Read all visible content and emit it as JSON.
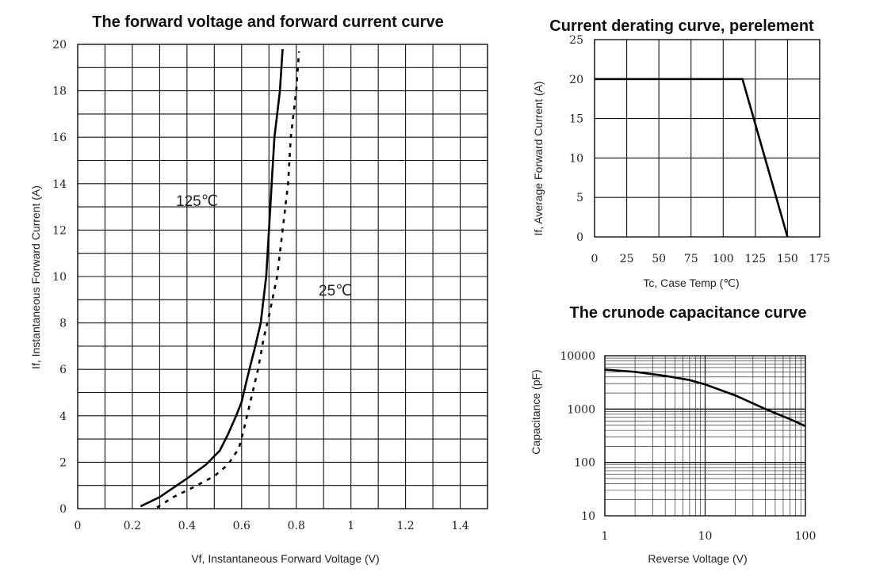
{
  "chart_data": [
    {
      "type": "line",
      "title": "The forward voltage and forward current curve",
      "xlabel": "Vf, Instantaneous Forward Voltage (V)",
      "ylabel": "If, Instantaneous Forward Current (A)",
      "xlim": [
        0,
        1.5
      ],
      "ylim": [
        0,
        20
      ],
      "x_ticks": [
        "0",
        "0.2",
        "0.4",
        "0.6",
        "0.8",
        "1",
        "1.2",
        "1.4"
      ],
      "y_ticks": [
        "0",
        "2",
        "4",
        "6",
        "8",
        "10",
        "12",
        "14",
        "16",
        "18",
        "20"
      ],
      "grid": true,
      "series": [
        {
          "name": "125℃",
          "line_style": "solid",
          "points": [
            [
              0.23,
              0.1
            ],
            [
              0.3,
              0.5
            ],
            [
              0.4,
              1.3
            ],
            [
              0.47,
              1.9
            ],
            [
              0.52,
              2.5
            ],
            [
              0.55,
              3.2
            ],
            [
              0.58,
              4.0
            ],
            [
              0.6,
              4.6
            ],
            [
              0.62,
              5.6
            ],
            [
              0.65,
              7.0
            ],
            [
              0.67,
              8.0
            ],
            [
              0.69,
              10.0
            ],
            [
              0.7,
              12.0
            ],
            [
              0.71,
              14.0
            ],
            [
              0.72,
              16.0
            ],
            [
              0.74,
              18.0
            ],
            [
              0.75,
              19.8
            ]
          ]
        },
        {
          "name": "25℃",
          "line_style": "dashed",
          "points": [
            [
              0.29,
              0.05
            ],
            [
              0.35,
              0.5
            ],
            [
              0.42,
              0.9
            ],
            [
              0.5,
              1.4
            ],
            [
              0.55,
              1.9
            ],
            [
              0.59,
              2.6
            ],
            [
              0.61,
              3.5
            ],
            [
              0.63,
              4.5
            ],
            [
              0.66,
              6.0
            ],
            [
              0.68,
              7.3
            ],
            [
              0.7,
              8.3
            ],
            [
              0.73,
              10.0
            ],
            [
              0.75,
              12.0
            ],
            [
              0.77,
              14.0
            ],
            [
              0.78,
              16.0
            ],
            [
              0.8,
              18.0
            ],
            [
              0.81,
              19.7
            ]
          ]
        }
      ],
      "annotations": [
        "125℃",
        "25℃"
      ]
    },
    {
      "type": "line",
      "title": "Current derating curve, perelement",
      "xlabel": "Tc, Case Temp (℃)",
      "ylabel": "If, Average Forward Current (A)",
      "xlim": [
        0,
        175
      ],
      "ylim": [
        0,
        25
      ],
      "x_ticks": [
        "0",
        "25",
        "50",
        "75",
        "100",
        "125",
        "150",
        "175"
      ],
      "y_ticks": [
        "0",
        "5",
        "10",
        "15",
        "20",
        "25"
      ],
      "grid": true,
      "series": [
        {
          "points": [
            [
              0,
              20
            ],
            [
              115,
              20
            ],
            [
              150,
              0
            ]
          ]
        }
      ]
    },
    {
      "type": "line",
      "title": "The crunode capacitance curve",
      "xlabel": "Reverse Voltage (V)",
      "ylabel": "Capacitance (pF)",
      "x_scale": "log",
      "y_scale": "log",
      "xlim": [
        1,
        100
      ],
      "ylim": [
        10,
        10000
      ],
      "x_ticks": [
        "1",
        "10",
        "100"
      ],
      "y_ticks": [
        "10",
        "100",
        "1000",
        "10000"
      ],
      "grid": true,
      "series": [
        {
          "points": [
            [
              1,
              5500
            ],
            [
              2,
              5000
            ],
            [
              4,
              4200
            ],
            [
              7,
              3500
            ],
            [
              10,
              2900
            ],
            [
              20,
              1800
            ],
            [
              40,
              1000
            ],
            [
              70,
              650
            ],
            [
              100,
              480
            ]
          ]
        }
      ]
    }
  ]
}
